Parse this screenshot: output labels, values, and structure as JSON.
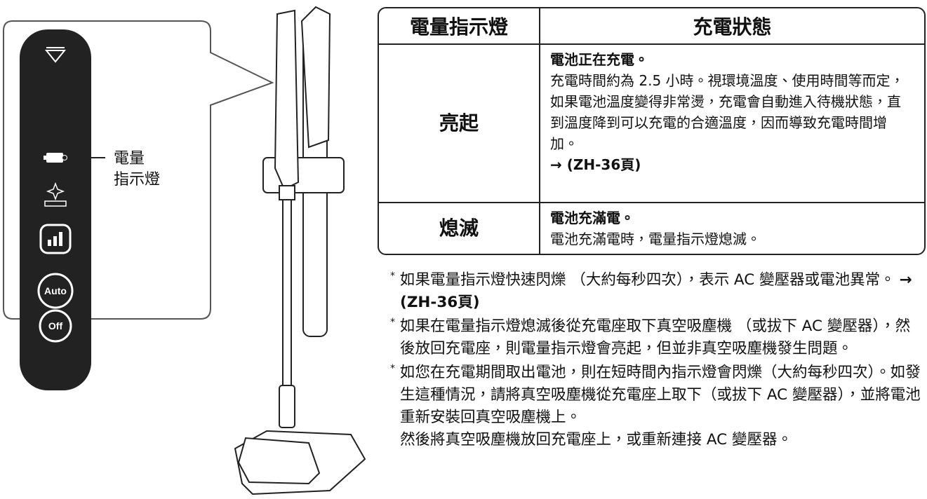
{
  "panel": {
    "buttons": [
      "Auto",
      "Off"
    ],
    "callout_label": [
      "電量",
      "指示燈"
    ]
  },
  "table": {
    "headers": [
      "電量指示燈",
      "充電狀態"
    ],
    "rows": [
      {
        "state": "亮起",
        "heading": "電池正在充電。",
        "body": "充電時間約為 2.5 小時。視環境溫度、使用時間等而定，如果電池溫度變得非常燙，充電會自動進入待機狀態，直到溫度降到可以充電的合適溫度，因而導致充電時間增加。",
        "reference": "→ (ZH-36頁)"
      },
      {
        "state": "熄滅",
        "heading": "電池充滿電。",
        "body": "電池充滿電時，電量指示燈熄滅。"
      }
    ]
  },
  "notes": [
    {
      "marker": "*",
      "paragraphs": [
        "如果電量指示燈快速閃爍 （大約每秒四次），表示 AC 變壓器或電池異常。"
      ],
      "reference": "→ (ZH-36頁)"
    },
    {
      "marker": "*",
      "paragraphs": [
        "如果在電量指示燈熄滅後從充電座取下真空吸塵機 （或拔下 AC 變壓器），然後放回充電座，則電量指示燈會亮起，但並非真空吸塵機發生問題。"
      ]
    },
    {
      "marker": "*",
      "paragraphs": [
        "如您在充電期間取出電池，則在短時間內指示燈會閃爍（大約每秒四次）。如發生這種情況，請將真空吸塵機從充電座上取下（或拔下 AC 變壓器），並將電池重新安裝回真空吸塵機上。",
        "然後將真空吸塵機放回充電座上，或重新連接 AC 變壓器。"
      ]
    }
  ]
}
